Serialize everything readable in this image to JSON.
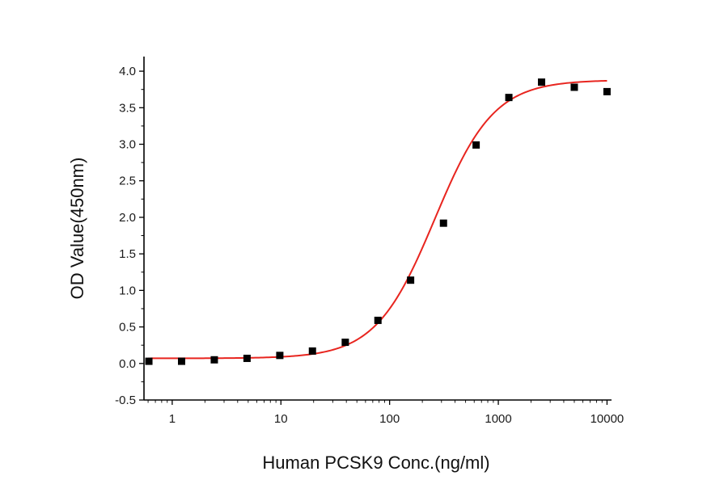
{
  "chart_data": {
    "type": "scatter",
    "title": "",
    "xlabel": "Human  PCSK9 Conc.(ng/ml)",
    "ylabel": "OD Value(450nm)",
    "x_scale": "log",
    "xlim": [
      0.55,
      11000
    ],
    "ylim": [
      -0.5,
      4.2
    ],
    "x_ticks": [
      1,
      10,
      100,
      1000,
      10000
    ],
    "x_tick_labels": [
      "1",
      "10",
      "100",
      "1000",
      "10000"
    ],
    "y_ticks": [
      -0.5,
      0.0,
      0.5,
      1.0,
      1.5,
      2.0,
      2.5,
      3.0,
      3.5,
      4.0
    ],
    "y_tick_labels": [
      "-0.5",
      "0.0",
      "0.5",
      "1.0",
      "1.5",
      "2.0",
      "2.5",
      "3.0",
      "3.5",
      "4.0"
    ],
    "grid": false,
    "legend": "none",
    "series": [
      {
        "kind": "points",
        "marker": "square",
        "color": "#000000",
        "x": [
          0.61,
          1.22,
          2.44,
          4.88,
          9.77,
          19.5,
          39.1,
          78.1,
          156,
          313,
          625,
          1250,
          2500,
          5000,
          10000
        ],
        "y": [
          0.03,
          0.03,
          0.05,
          0.07,
          0.11,
          0.17,
          0.29,
          0.59,
          1.14,
          1.92,
          2.99,
          3.64,
          3.85,
          3.78,
          3.72
        ]
      },
      {
        "kind": "fit_curve",
        "model": "4PL",
        "color": "#e8251f",
        "params": {
          "bottom": 0.07,
          "top": 3.88,
          "ec50": 260,
          "hill": 1.6
        },
        "x_range": [
          0.6,
          10000
        ]
      }
    ]
  }
}
